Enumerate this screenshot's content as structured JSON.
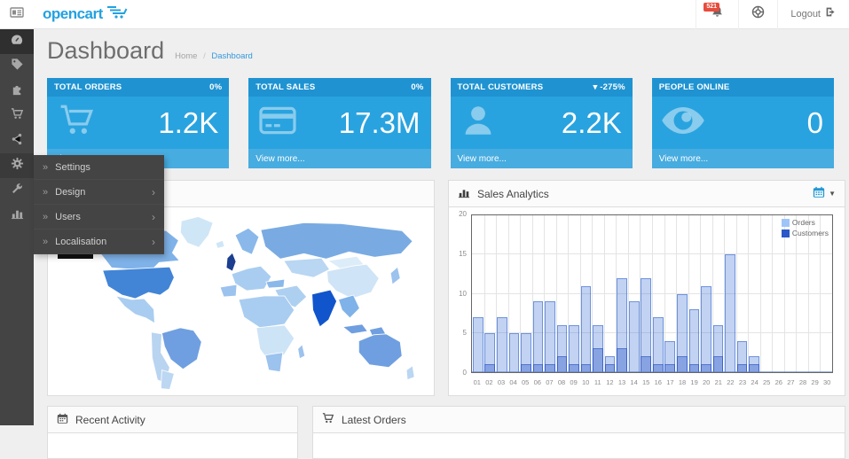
{
  "colors": {
    "accent": "#23a1e0",
    "tile_header": "#1f93d1",
    "tile_body": "#29a3df",
    "tile_footer": "#47ace0",
    "badge_red": "#e74c3c",
    "sidebar_bg": "#444444"
  },
  "topbar": {
    "logo_text": "opencart",
    "notification_count": "521",
    "logout_label": "Logout"
  },
  "page": {
    "title": "Dashboard",
    "breadcrumb_home": "Home",
    "breadcrumb_sep": "/",
    "breadcrumb_current": "Dashboard"
  },
  "sidebar": {
    "items": [
      "dashboard",
      "catalog",
      "extensions",
      "sales",
      "marketing",
      "system",
      "tools",
      "reports"
    ],
    "flyout": {
      "items": [
        {
          "label": "Settings",
          "has_children": false
        },
        {
          "label": "Design",
          "has_children": true,
          "chevron": "›"
        },
        {
          "label": "Users",
          "has_children": true,
          "chevron": "›"
        },
        {
          "label": "Localisation",
          "has_children": true,
          "chevron": "›"
        }
      ],
      "bullet": "»"
    }
  },
  "stat_cards": [
    {
      "title": "TOTAL ORDERS",
      "change": "0%",
      "value": "1.2K",
      "icon": "shopping-cart-icon",
      "link": "View more..."
    },
    {
      "title": "TOTAL SALES",
      "change": "0%",
      "value": "17.3M",
      "icon": "credit-card-icon",
      "link": "View more..."
    },
    {
      "title": "TOTAL CUSTOMERS",
      "change": "▾ -275%",
      "value": "2.2K",
      "icon": "user-icon",
      "link": "View more..."
    },
    {
      "title": "PEOPLE ONLINE",
      "change": "",
      "value": "0",
      "icon": "eye-icon",
      "link": "View more..."
    }
  ],
  "panels": {
    "map": {
      "title": ""
    },
    "sales_analytics": {
      "title": "Sales Analytics"
    },
    "recent_activity": {
      "title": "Recent Activity"
    },
    "latest_orders": {
      "title": "Latest Orders"
    }
  },
  "map_panel": {
    "region_shades": {
      "alaska": "#a9cdf0",
      "canada": "#7fb2e8",
      "greenland": "#cfe6f7",
      "iceland": "#cfe6f7",
      "usa": "#4285d6",
      "mexico": "#a9cdf0",
      "brazil": "#6f9fe0",
      "andes": "#b9d4f0",
      "argentina": "#bcd7f2",
      "scandinavia": "#8ab8ea",
      "uk": "#1b3e8f",
      "europe": "#a9cdf0",
      "iberia": "#9cc2ee",
      "russia": "#79abe2",
      "centralasia": "#b9d6f2",
      "china": "#cfe4f6",
      "mongolia": "#ddecf9",
      "mideast": "#aed0f0",
      "turkey": "#8ab8ea",
      "northafrica": "#a9cdf0",
      "centralafrica": "#cde4f6",
      "southafrica": "#9cc2ee",
      "madagascar": "#9cc2ee",
      "india": "#1155cc",
      "seasia": "#7fb2e8",
      "indonesia": "#6f9fe0",
      "japan": "#9cc2ee",
      "australia": "#6f9fe0",
      "newzealand": "#b9d6f2"
    }
  },
  "chart_data": {
    "type": "bar",
    "title": "Sales Analytics",
    "categories": [
      "01",
      "02",
      "03",
      "04",
      "05",
      "06",
      "07",
      "08",
      "09",
      "10",
      "11",
      "12",
      "13",
      "14",
      "15",
      "16",
      "17",
      "18",
      "19",
      "20",
      "21",
      "22",
      "23",
      "24",
      "25",
      "26",
      "27",
      "28",
      "29",
      "30"
    ],
    "series": [
      {
        "name": "Orders",
        "color": "#9fc5f8",
        "values": [
          7,
          5,
          7,
          5,
          5,
          9,
          9,
          6,
          6,
          11,
          6,
          2,
          12,
          9,
          12,
          7,
          4,
          10,
          8,
          11,
          6,
          15,
          4,
          2,
          0,
          0,
          0,
          0,
          0,
          0
        ]
      },
      {
        "name": "Customers",
        "color": "#2b57c8",
        "values": [
          0,
          1,
          0,
          0,
          1,
          1,
          1,
          2,
          1,
          1,
          3,
          1,
          3,
          0,
          2,
          1,
          1,
          2,
          1,
          1,
          2,
          0,
          1,
          1,
          0,
          0,
          0,
          0,
          0,
          0
        ]
      }
    ],
    "xlabel": "",
    "ylabel": "",
    "ylim": [
      0,
      20
    ],
    "yticks": [
      0,
      5,
      10,
      15,
      20
    ],
    "grid": true,
    "legend_position": "top-right"
  }
}
